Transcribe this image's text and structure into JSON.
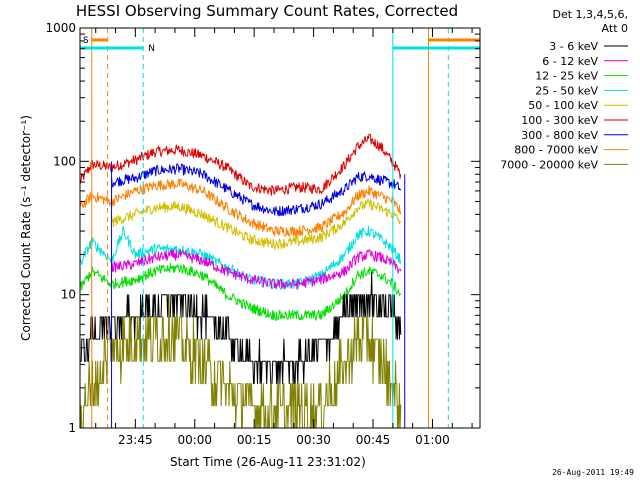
{
  "chart_data": {
    "type": "line",
    "title": "HESSI Observing Summary Count Rates, Corrected",
    "xlabel": "Start Time (26-Aug-11 23:31:02)",
    "ylabel": "Corrected Count Rate (s⁻¹ detector⁻¹)",
    "yscale": "log",
    "ylim": [
      1,
      1000
    ],
    "xlim": [
      "23:31:02",
      "01:12"
    ],
    "x_ticks": [
      "23:45",
      "00:00",
      "00:15",
      "00:30",
      "00:45",
      "01:00"
    ],
    "y_ticks": [
      "1",
      "10",
      "100",
      "1000"
    ],
    "grid": false,
    "legend": {
      "placement": "right",
      "header": [
        "Det 1,3,4,5,6,",
        "Att 0"
      ],
      "entries": [
        {
          "label": "3 - 6 keV",
          "color": "#000000"
        },
        {
          "label": "6 - 12 keV",
          "color": "#e000e0"
        },
        {
          "label": "12 - 25 keV",
          "color": "#00e000"
        },
        {
          "label": "25 - 50 keV",
          "color": "#00e0e0"
        },
        {
          "label": "50 - 100 keV",
          "color": "#d0c000"
        },
        {
          "label": "100 - 300 keV",
          "color": "#e00000"
        },
        {
          "label": "300 - 800 keV",
          "color": "#0000e0"
        },
        {
          "label": "800 - 7000 keV",
          "color": "#ff7f00"
        },
        {
          "label": "7000 - 20000 keV",
          "color": "#808000"
        }
      ]
    },
    "series": [
      {
        "name": "100 - 300 keV",
        "color": "#e00000",
        "x": [
          "23:31",
          "23:34",
          "23:39",
          "23:45",
          "23:50",
          "23:56",
          "00:02",
          "00:08",
          "00:14",
          "00:20",
          "00:26",
          "00:32",
          "00:38",
          "00:41",
          "00:44",
          "00:47",
          "00:50",
          "00:52"
        ],
        "y": [
          70,
          95,
          90,
          102,
          118,
          122,
          110,
          90,
          65,
          60,
          64,
          62,
          95,
          128,
          148,
          128,
          98,
          80
        ]
      },
      {
        "name": "300 - 800 keV",
        "color": "#0000e0",
        "x": [
          "23:39",
          "23:45",
          "23:50",
          "23:56",
          "00:02",
          "00:08",
          "00:14",
          "00:20",
          "00:26",
          "00:32",
          "00:38",
          "00:41",
          "00:44",
          "00:47",
          "00:50",
          "00:52"
        ],
        "y": [
          70,
          75,
          85,
          88,
          80,
          62,
          48,
          42,
          44,
          48,
          62,
          76,
          78,
          72,
          68,
          62
        ]
      },
      {
        "name": "800 - 7000 keV",
        "color": "#ff7f00",
        "x": [
          "23:31",
          "23:34",
          "23:39",
          "23:45",
          "23:50",
          "23:56",
          "00:02",
          "00:08",
          "00:14",
          "00:20",
          "00:26",
          "00:32",
          "00:38",
          "00:41",
          "00:44",
          "00:47",
          "00:50",
          "00:52"
        ],
        "y": [
          45,
          55,
          50,
          60,
          66,
          68,
          60,
          45,
          35,
          30,
          30,
          32,
          42,
          55,
          60,
          55,
          50,
          42
        ]
      },
      {
        "name": "50 - 100 keV",
        "color": "#d0c000",
        "x": [
          "23:39",
          "23:45",
          "23:50",
          "23:56",
          "00:02",
          "00:08",
          "00:14",
          "00:20",
          "00:26",
          "00:32",
          "00:38",
          "00:41",
          "00:44",
          "00:47",
          "00:50",
          "00:52"
        ],
        "y": [
          35,
          40,
          45,
          46,
          40,
          32,
          26,
          24,
          25,
          27,
          35,
          45,
          48,
          44,
          40,
          35
        ]
      },
      {
        "name": "25 - 50 keV",
        "color": "#00e0e0",
        "x": [
          "23:31",
          "23:34",
          "23:39",
          "23:42",
          "23:45",
          "23:50",
          "23:56",
          "00:02",
          "00:08",
          "00:14",
          "00:20",
          "00:26",
          "00:32",
          "00:38",
          "00:41",
          "00:44",
          "00:47",
          "00:50",
          "00:52"
        ],
        "y": [
          17,
          25,
          18,
          30,
          20,
          22,
          22,
          20,
          16,
          13,
          12,
          12,
          14,
          20,
          28,
          30,
          26,
          22,
          18
        ]
      },
      {
        "name": "6 - 12 keV",
        "color": "#e000e0",
        "x": [
          "23:39",
          "23:45",
          "23:50",
          "23:56",
          "00:02",
          "00:08",
          "00:14",
          "00:20",
          "00:26",
          "00:32",
          "00:38",
          "00:41",
          "00:44",
          "00:47",
          "00:50",
          "00:52"
        ],
        "y": [
          16,
          17,
          19,
          20,
          18,
          15,
          13,
          12,
          12,
          13,
          15,
          19,
          20,
          19,
          17,
          15
        ]
      },
      {
        "name": "12 - 25 keV",
        "color": "#00e000",
        "x": [
          "23:31",
          "23:34",
          "23:39",
          "23:45",
          "23:50",
          "23:56",
          "00:02",
          "00:08",
          "00:14",
          "00:20",
          "00:26",
          "00:32",
          "00:38",
          "00:41",
          "00:44",
          "00:47",
          "00:50",
          "00:52"
        ],
        "y": [
          11,
          15,
          12,
          13,
          15,
          16,
          14,
          10,
          8,
          7,
          7,
          7,
          10,
          14,
          15,
          14,
          12,
          10
        ]
      },
      {
        "name": "3 - 6 keV",
        "color": "#000000",
        "x": [
          "23:31",
          "23:34",
          "23:39",
          "23:45",
          "23:50",
          "23:56",
          "00:02",
          "00:08",
          "00:14",
          "00:20",
          "00:26",
          "00:32",
          "00:38",
          "00:41",
          "00:44",
          "00:47",
          "00:50",
          "00:52"
        ],
        "y": [
          3,
          5,
          6,
          7,
          8,
          9,
          7,
          5,
          3,
          3,
          3,
          4,
          7,
          9,
          10,
          9,
          7,
          5
        ]
      },
      {
        "name": "7000 - 20000 keV",
        "color": "#808000",
        "x": [
          "23:31",
          "23:34",
          "23:39",
          "23:45",
          "23:50",
          "23:56",
          "00:02",
          "00:08",
          "00:14",
          "00:20",
          "00:26",
          "00:32",
          "00:38",
          "00:41",
          "00:44",
          "00:47",
          "00:50",
          "00:52"
        ],
        "y": [
          1.5,
          1.8,
          4,
          4.5,
          5,
          5,
          3,
          2,
          1.5,
          1.3,
          1.3,
          1.5,
          3,
          4.5,
          5,
          3,
          2,
          1.5
        ]
      }
    ],
    "flags": {
      "saa_label": "S",
      "night_label": "N"
    }
  },
  "footer": {
    "timestamp": "26-Aug-2011 19:49"
  },
  "colors": {
    "saa": "#ff7f00",
    "night": "#00e0e0"
  }
}
